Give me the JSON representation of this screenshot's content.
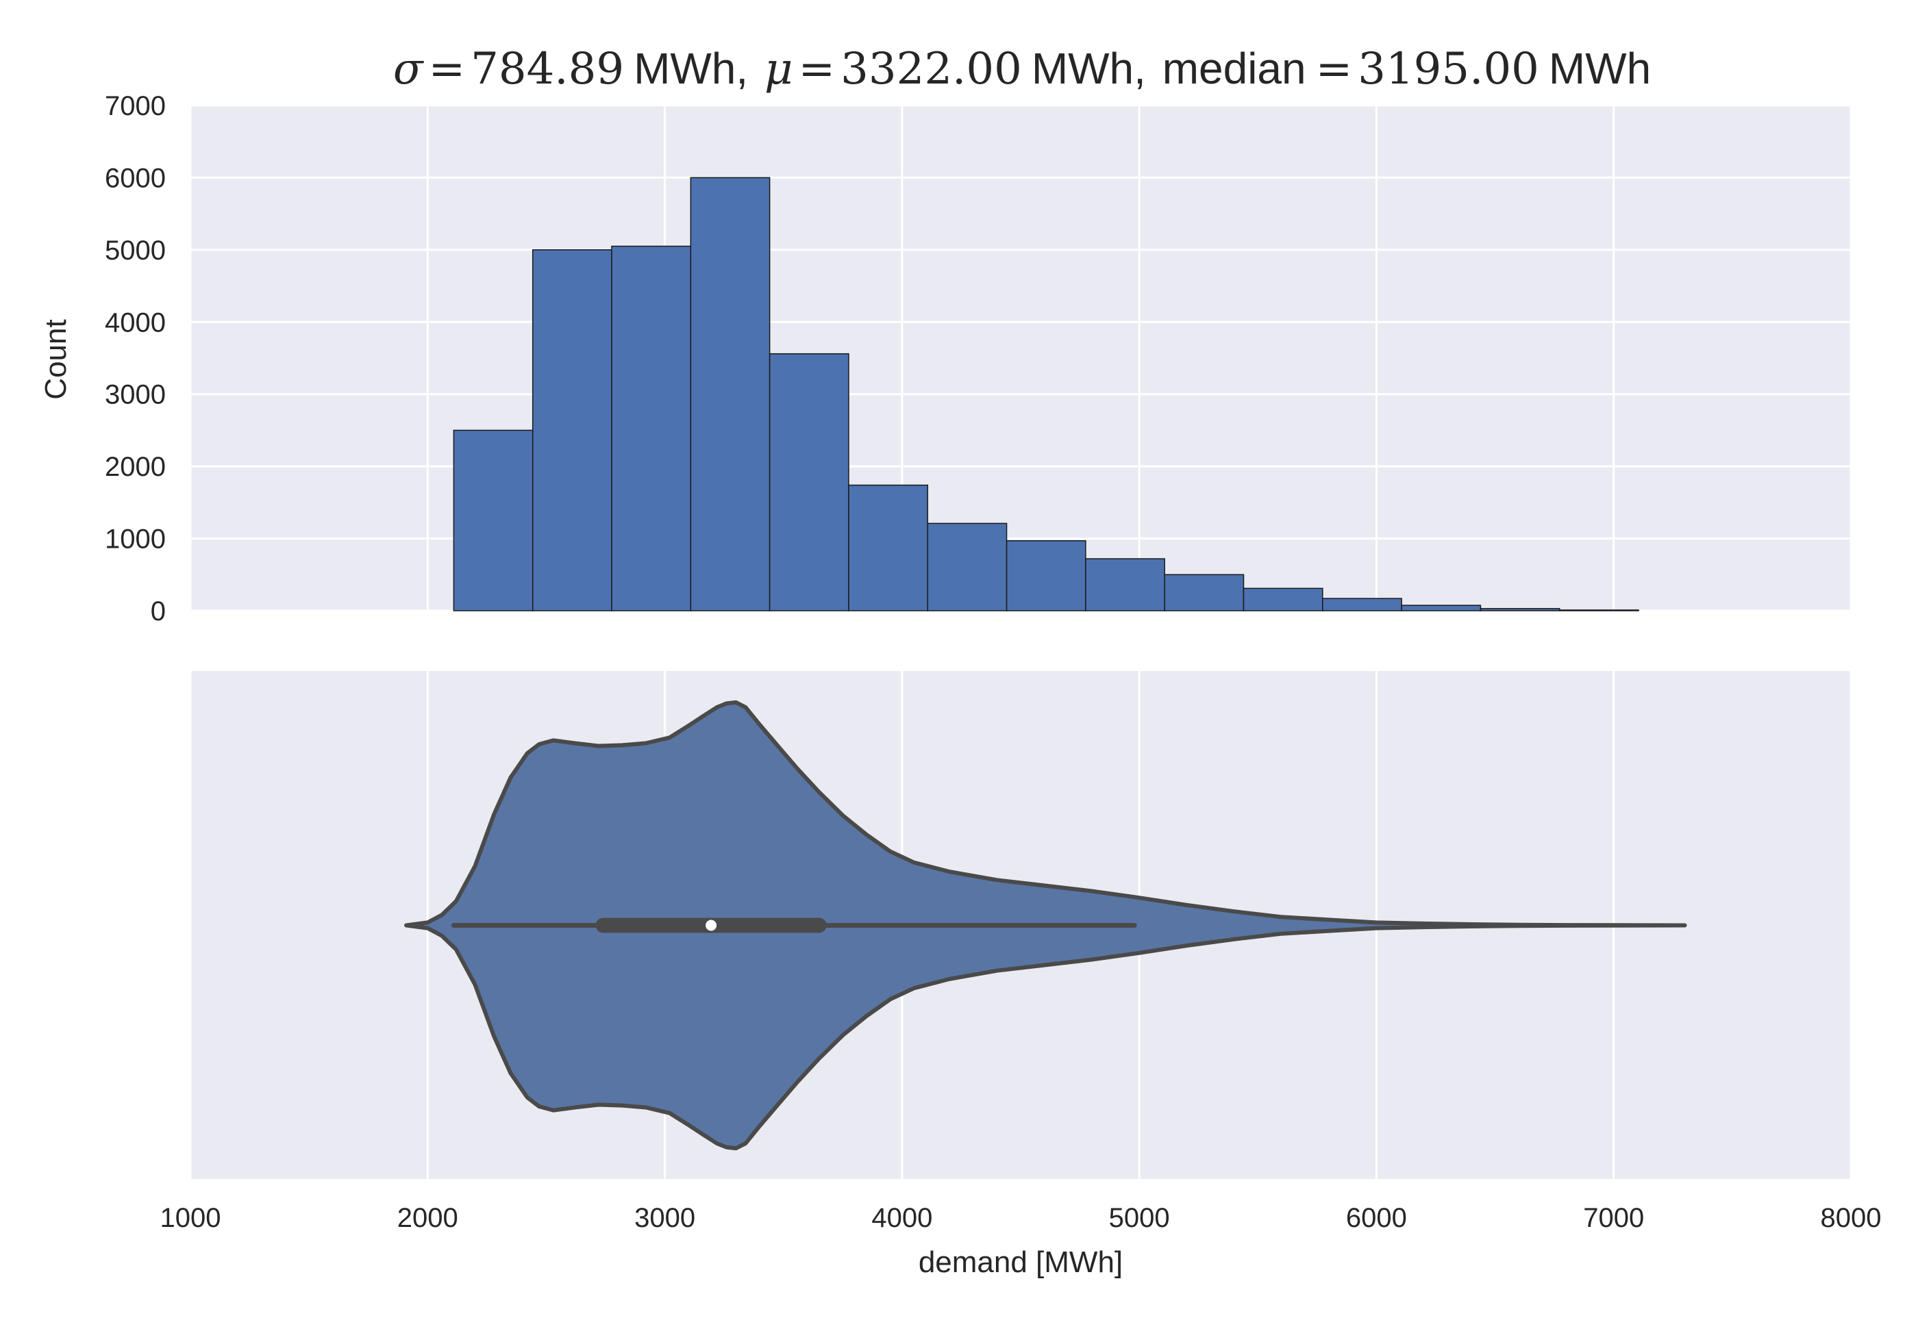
{
  "chart_data": [
    {
      "type": "bar",
      "title": {
        "sigma_symbol": "σ",
        "sigma_value": "784.89",
        "mu_symbol": "μ",
        "mu_value": "3322.00",
        "median_label": "median",
        "median_value": "3195.00",
        "unit": "MWh",
        "equals": "=",
        "separator": ", "
      },
      "xlabel": "",
      "ylabel": "Count",
      "xlim": [
        1000,
        8000
      ],
      "ylim": [
        0,
        7000
      ],
      "yticks": [
        "0",
        "1000",
        "2000",
        "3000",
        "4000",
        "5000",
        "6000",
        "7000"
      ],
      "bin_edges": [
        2110,
        2443,
        2776,
        3109,
        3442,
        3775,
        4108,
        4441,
        4774,
        5107,
        5440,
        5773,
        6106,
        6439,
        6772,
        7105
      ],
      "values": [
        2500,
        5000,
        5050,
        6000,
        3560,
        1740,
        1210,
        970,
        720,
        500,
        310,
        170,
        75,
        30,
        10
      ],
      "grid": true,
      "bar_color": "#4c72b0",
      "background": "#eaeaf2"
    },
    {
      "type": "violin",
      "xlabel": "demand [MWh]",
      "ylabel": "",
      "xlim": [
        1000,
        8000
      ],
      "xticks": [
        "1000",
        "2000",
        "3000",
        "4000",
        "5000",
        "6000",
        "7000",
        "8000"
      ],
      "density_profile": {
        "x": [
          1910,
          2000,
          2060,
          2120,
          2200,
          2280,
          2350,
          2420,
          2470,
          2530,
          2620,
          2720,
          2820,
          2920,
          3020,
          3100,
          3160,
          3220,
          3260,
          3300,
          3340,
          3400,
          3480,
          3560,
          3650,
          3750,
          3850,
          3950,
          4050,
          4200,
          4400,
          4600,
          4800,
          5000,
          5200,
          5400,
          5600,
          5800,
          6000,
          6200,
          6400,
          6600,
          6800,
          7000,
          7150,
          7300
        ],
        "half_width": [
          0,
          0.011,
          0.041,
          0.095,
          0.234,
          0.438,
          0.584,
          0.679,
          0.715,
          0.73,
          0.719,
          0.708,
          0.711,
          0.719,
          0.741,
          0.788,
          0.825,
          0.861,
          0.876,
          0.88,
          0.861,
          0.792,
          0.704,
          0.617,
          0.526,
          0.434,
          0.358,
          0.292,
          0.248,
          0.212,
          0.179,
          0.157,
          0.135,
          0.109,
          0.08,
          0.055,
          0.033,
          0.022,
          0.011,
          0.007,
          0.004,
          0.002,
          0.001,
          0.0005,
          0.0002,
          0
        ]
      },
      "whisker_range": [
        2110,
        4980
      ],
      "quartiles": [
        2740,
        3650
      ],
      "median": 3195,
      "grid": true,
      "fill_color": "#5975a4",
      "line_color": "#4a4a4a",
      "background": "#eaeaf2"
    }
  ]
}
